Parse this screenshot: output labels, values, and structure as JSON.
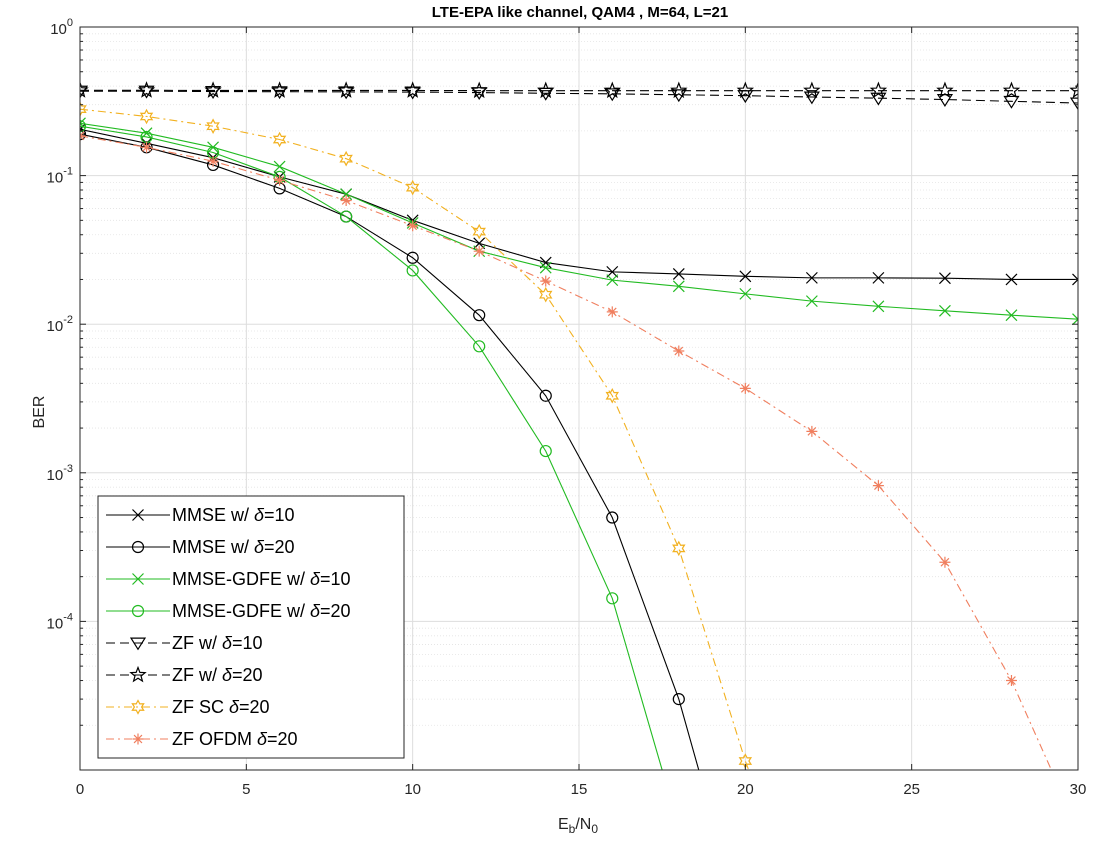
{
  "chart_data": {
    "type": "line",
    "title": "LTE-EPA like channel, QAM4 , M=64, L=21",
    "xlabel_main": "E",
    "xlabel_sub1": "b",
    "xlabel_mid": "/N",
    "xlabel_sub2": "0",
    "ylabel": "BER",
    "xlim": [
      0,
      30
    ],
    "ylim": [
      1e-05,
      1
    ],
    "yscale": "log",
    "grid": true,
    "minor_grid": true,
    "legend_position": "bottom-left",
    "xticks": [
      0,
      5,
      10,
      15,
      20,
      25,
      30
    ],
    "xtick_labels": [
      "0",
      "5",
      "10",
      "15",
      "20",
      "25",
      "30"
    ],
    "yticks": [
      1,
      0.1,
      0.01,
      0.001,
      0.0001
    ],
    "ytick_base": "10",
    "ytick_exps": [
      "0",
      "-1",
      "-2",
      "-3",
      "-4"
    ],
    "series": [
      {
        "name_pre": "MMSE w/ ",
        "name_delta": "δ",
        "name_post": "=10",
        "color": "#000000",
        "marker": "x",
        "dash": "solid",
        "x": [
          0,
          2,
          4,
          6,
          8,
          10,
          12,
          14,
          16,
          18,
          20,
          22,
          24,
          26,
          28,
          30
        ],
        "y": [
          0.205,
          0.165,
          0.132,
          0.098,
          0.075,
          0.05,
          0.035,
          0.026,
          0.0225,
          0.0218,
          0.021,
          0.0205,
          0.0205,
          0.0204,
          0.02,
          0.02
        ]
      },
      {
        "name_pre": "MMSE w/ ",
        "name_delta": "δ",
        "name_post": "=20",
        "color": "#000000",
        "marker": "o",
        "dash": "solid",
        "x": [
          0,
          2,
          4,
          6,
          8,
          10,
          12,
          14,
          16,
          18,
          18.6
        ],
        "y": [
          0.19,
          0.155,
          0.118,
          0.082,
          0.053,
          0.028,
          0.0115,
          0.0033,
          0.0005,
          3e-05,
          1e-05
        ]
      },
      {
        "name_pre": "MMSE-GDFE w/ ",
        "name_delta": "δ",
        "name_post": "=10",
        "color": "#22bb22",
        "marker": "x",
        "dash": "solid",
        "x": [
          0,
          2,
          4,
          6,
          8,
          10,
          12,
          14,
          16,
          18,
          20,
          22,
          24,
          26,
          28,
          30
        ],
        "y": [
          0.225,
          0.193,
          0.155,
          0.115,
          0.075,
          0.048,
          0.031,
          0.024,
          0.0198,
          0.018,
          0.016,
          0.0143,
          0.0132,
          0.0123,
          0.0115,
          0.0108
        ]
      },
      {
        "name_pre": "MMSE-GDFE w/ ",
        "name_delta": "δ",
        "name_post": "=20",
        "color": "#22bb22",
        "marker": "o",
        "dash": "solid",
        "x": [
          0,
          2,
          4,
          6,
          8,
          10,
          12,
          14,
          16,
          17.5
        ],
        "y": [
          0.215,
          0.182,
          0.143,
          0.098,
          0.053,
          0.023,
          0.0071,
          0.0014,
          0.000143,
          1e-05
        ]
      },
      {
        "name_pre": "ZF w/ ",
        "name_delta": "δ",
        "name_post": "=10",
        "color": "#000000",
        "marker": "v",
        "dash": "dashed",
        "x": [
          0,
          2,
          4,
          6,
          8,
          10,
          12,
          14,
          16,
          18,
          20,
          22,
          24,
          26,
          28,
          30
        ],
        "y": [
          0.37,
          0.37,
          0.368,
          0.367,
          0.366,
          0.365,
          0.362,
          0.358,
          0.355,
          0.35,
          0.345,
          0.338,
          0.332,
          0.325,
          0.316,
          0.308
        ]
      },
      {
        "name_pre": "ZF w/ ",
        "name_delta": "δ",
        "name_post": "=20",
        "color": "#000000",
        "marker": "star",
        "dash": "dashed",
        "x": [
          0,
          2,
          4,
          6,
          8,
          10,
          12,
          14,
          16,
          18,
          20,
          22,
          24,
          26,
          28,
          30
        ],
        "y": [
          0.375,
          0.375,
          0.374,
          0.374,
          0.374,
          0.374,
          0.373,
          0.373,
          0.373,
          0.373,
          0.373,
          0.373,
          0.373,
          0.373,
          0.373,
          0.373
        ]
      },
      {
        "name_pre": "ZF SC ",
        "name_delta": "δ",
        "name_post": "=20",
        "color": "#f2b120",
        "marker": "hexstar",
        "dash": "dashdot",
        "x": [
          0,
          2,
          4,
          6,
          8,
          10,
          12,
          14,
          16,
          18,
          20,
          20.1
        ],
        "y": [
          0.28,
          0.25,
          0.215,
          0.175,
          0.13,
          0.083,
          0.042,
          0.0158,
          0.0033,
          0.00031,
          1.15e-05,
          1e-05
        ]
      },
      {
        "name_pre": "ZF OFDM ",
        "name_delta": "δ",
        "name_post": "=20",
        "color": "#f07f5f",
        "marker": "asterisk",
        "dash": "dashdot",
        "x": [
          0,
          2,
          4,
          6,
          8,
          10,
          12,
          14,
          16,
          18,
          20,
          22,
          24,
          26,
          28,
          29.2
        ],
        "y": [
          0.185,
          0.155,
          0.125,
          0.093,
          0.068,
          0.046,
          0.031,
          0.0195,
          0.0121,
          0.0066,
          0.0037,
          0.0019,
          0.00082,
          0.00025,
          4e-05,
          1e-05
        ]
      }
    ]
  }
}
